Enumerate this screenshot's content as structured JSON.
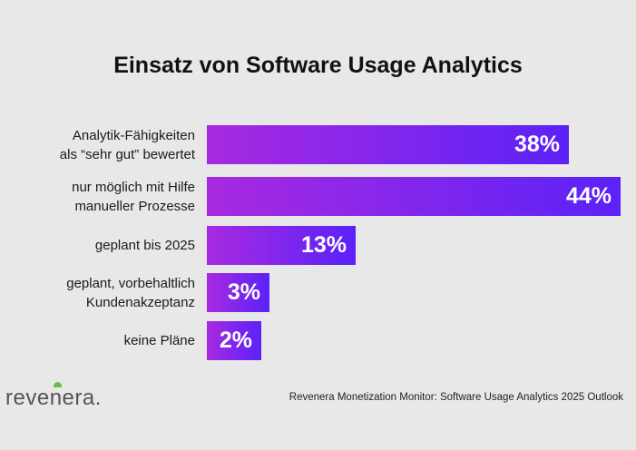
{
  "chart_data": {
    "type": "bar",
    "orientation": "horizontal",
    "title": "Einsatz von Software Usage Analytics",
    "categories": [
      "Analytik-Fähigkeiten\nals “sehr gut” bewertet",
      "nur möglich mit Hilfe\nmanueller Prozesse",
      "geplant bis 2025",
      "geplant, vorbehaltlich\nKundenakzeptanz",
      "keine Pläne"
    ],
    "values": [
      38,
      44,
      13,
      3,
      2
    ],
    "value_labels": [
      "38%",
      "44%",
      "13%",
      "3%",
      "2%"
    ],
    "unit": "%",
    "grid": false,
    "colors": {
      "gradient_start": "#a82ae0",
      "gradient_end": "#5b22f8"
    }
  },
  "footer": {
    "logo": "revenera",
    "source": "Revenera Monetization Monitor: Software Usage Analytics 2025 Outlook"
  }
}
